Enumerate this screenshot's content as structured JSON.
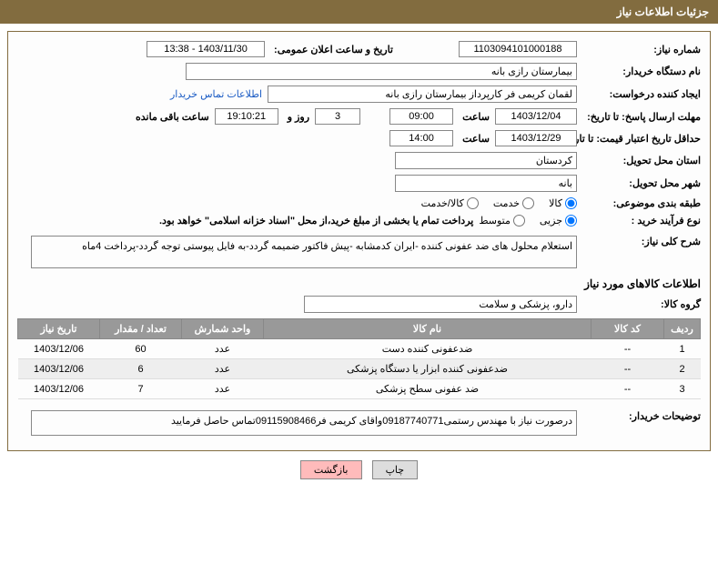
{
  "header": {
    "title": "جزئیات اطلاعات نیاز"
  },
  "fields": {
    "need_number_label": "شماره نیاز:",
    "need_number": "1103094101000188",
    "announce_label": "تاریخ و ساعت اعلان عمومی:",
    "announce_value": "1403/11/30 - 13:38",
    "buyer_org_label": "نام دستگاه خریدار:",
    "buyer_org": "بیمارستان رازی بانه",
    "requester_label": "ایجاد کننده درخواست:",
    "requester": "لقمان کریمی فر کارپرداز بیمارستان رازی بانه",
    "contact_link": "اطلاعات تماس خریدار",
    "deadline_send_label": "مهلت ارسال پاسخ: تا تاریخ:",
    "deadline_send_date": "1403/12/04",
    "hour_label": "ساعت",
    "deadline_send_time": "09:00",
    "remain_days": "3",
    "day_and": "روز و",
    "remain_time": "19:10:21",
    "remain_label": "ساعت باقی مانده",
    "validity_label": "حداقل تاریخ اعتبار قیمت: تا تاریخ:",
    "validity_date": "1403/12/29",
    "validity_time": "14:00",
    "province_label": "استان محل تحویل:",
    "province": "کردستان",
    "city_label": "شهر محل تحویل:",
    "city": "بانه",
    "category_label": "طبقه بندی موضوعی:",
    "cat_goods": "کالا",
    "cat_service": "خدمت",
    "cat_both": "کالا/خدمت",
    "purchase_type_label": "نوع فرآیند خرید :",
    "pt_small": "جزیی",
    "pt_medium": "متوسط",
    "payment_note": "پرداخت تمام یا بخشی از مبلغ خرید،از محل \"اسناد خزانه اسلامی\" خواهد بود.",
    "summary_label": "شرح کلی نیاز:",
    "summary": "استعلام محلول های ضد عفونی کننده -ایران کدمشابه -پیش فاکتور ضمیمه گردد-به فایل پیوستی توجه گردد-پرداخت 4ماه",
    "items_section": "اطلاعات کالاهای مورد نیاز",
    "group_label": "گروه کالا:",
    "group": "دارو، پزشکی و سلامت",
    "buyer_notes_label": "توضیحات خریدار:",
    "buyer_notes": "درصورت نیاز با مهندس رستمی09187740771واقای کریمی فر09115908466تماس حاصل فرمایید"
  },
  "table": {
    "headers": {
      "row": "ردیف",
      "code": "کد کالا",
      "name": "نام کالا",
      "unit": "واحد شمارش",
      "qty": "تعداد / مقدار",
      "date": "تاریخ نیاز"
    },
    "rows": [
      {
        "n": "1",
        "code": "--",
        "name": "ضدعفونی کننده دست",
        "unit": "عدد",
        "qty": "60",
        "date": "1403/12/06"
      },
      {
        "n": "2",
        "code": "--",
        "name": "ضدعفونی کننده ابزار یا دستگاه پزشکی",
        "unit": "عدد",
        "qty": "6",
        "date": "1403/12/06"
      },
      {
        "n": "3",
        "code": "--",
        "name": "ضد عفونی سطح پزشکی",
        "unit": "عدد",
        "qty": "7",
        "date": "1403/12/06"
      }
    ]
  },
  "buttons": {
    "print": "چاپ",
    "back": "بازگشت"
  },
  "colors": {
    "header_bg": "#826c3f",
    "th_bg": "#999999"
  }
}
